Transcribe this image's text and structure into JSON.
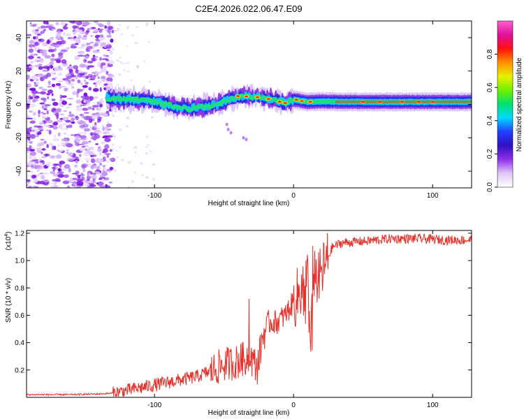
{
  "figure_title": "C2E4.2026.022.06.47.E09",
  "chart_data": [
    {
      "type": "heatmap",
      "name": "spectrogram",
      "xlabel": "Height of straight line (km)",
      "ylabel": "Frequency (Hz)",
      "xlim": [
        -192,
        128
      ],
      "ylim": [
        -50,
        50
      ],
      "x_ticks": [
        -100,
        0,
        100
      ],
      "x_tick_labels": [
        "-100",
        "0",
        "100"
      ],
      "y_ticks": [
        -40,
        -20,
        0,
        20,
        40
      ],
      "y_tick_labels": [
        "-40",
        "-20",
        "0",
        "20",
        "40"
      ],
      "colorbar": {
        "label": "Normalized spectral amplitude",
        "range": [
          0,
          1
        ],
        "ticks": [
          0.0,
          0.2,
          0.4,
          0.6,
          0.8
        ],
        "tick_labels": [
          "0.0",
          "0.2",
          "0.4",
          "0.6",
          "0.8"
        ],
        "colors": [
          "#ffffff",
          "#e0c8f8",
          "#9030e8",
          "#3010c0",
          "#2040ff",
          "#00d8ff",
          "#00e070",
          "#70f000",
          "#e8f000",
          "#ff9000",
          "#ff1010",
          "#e0109a",
          "#ff60d0"
        ]
      },
      "noise_region_x": [
        -192,
        -130
      ],
      "line_center": [
        {
          "x": -134,
          "f": 3.5
        },
        {
          "x": -120,
          "f": 2.8
        },
        {
          "x": -105,
          "f": 2.5
        },
        {
          "x": -95,
          "f": 1.0
        },
        {
          "x": -85,
          "f": -1.5
        },
        {
          "x": -75,
          "f": -2.5
        },
        {
          "x": -65,
          "f": -1.5
        },
        {
          "x": -55,
          "f": 0.0
        },
        {
          "x": -45,
          "f": 3.5
        },
        {
          "x": -35,
          "f": 5.0
        },
        {
          "x": -25,
          "f": 4.5
        },
        {
          "x": -15,
          "f": 3.0
        },
        {
          "x": -5,
          "f": 1.0
        },
        {
          "x": 0,
          "f": 2.8
        },
        {
          "x": 10,
          "f": 1.5
        },
        {
          "x": 20,
          "f": 1.8
        },
        {
          "x": 40,
          "f": 1.5
        },
        {
          "x": 60,
          "f": 1.5
        },
        {
          "x": 80,
          "f": 1.5
        },
        {
          "x": 100,
          "f": 1.5
        },
        {
          "x": 128,
          "f": 1.5
        }
      ]
    },
    {
      "type": "line",
      "name": "snr",
      "xlabel": "Height of straight line (km)",
      "ylabel": "SNR (10 * v/v)",
      "scale_label": "(x10",
      "scale_exponent": "4",
      "scale_suffix": ")",
      "xlim": [
        -192,
        128
      ],
      "ylim": [
        0,
        1.22
      ],
      "x_ticks": [
        -100,
        0,
        100
      ],
      "x_tick_labels": [
        "-100",
        "0",
        "100"
      ],
      "y_ticks": [
        0.2,
        0.4,
        0.6,
        0.8,
        1.0,
        1.2
      ],
      "y_tick_labels": [
        "0.2",
        "0.4",
        "0.6",
        "0.8",
        "1.0",
        "1.2"
      ],
      "line_color": "#e8302a",
      "series": [
        {
          "name": "SNR",
          "points": [
            [
              -192,
              0.02
            ],
            [
              -160,
              0.02
            ],
            [
              -140,
              0.025
            ],
            [
              -130,
              0.03
            ],
            [
              -120,
              0.05
            ],
            [
              -110,
              0.07
            ],
            [
              -100,
              0.09
            ],
            [
              -90,
              0.11
            ],
            [
              -80,
              0.13
            ],
            [
              -70,
              0.15
            ],
            [
              -60,
              0.19
            ],
            [
              -50,
              0.24
            ],
            [
              -40,
              0.26
            ],
            [
              -32,
              0.3
            ],
            [
              -26,
              0.22
            ],
            [
              -22,
              0.45
            ],
            [
              -18,
              0.55
            ],
            [
              -12,
              0.55
            ],
            [
              -6,
              0.6
            ],
            [
              0,
              0.7
            ],
            [
              6,
              0.78
            ],
            [
              10,
              0.85
            ],
            [
              12,
              0.4
            ],
            [
              14,
              0.95
            ],
            [
              18,
              0.85
            ],
            [
              22,
              0.95
            ],
            [
              28,
              1.1
            ],
            [
              35,
              1.13
            ],
            [
              50,
              1.14
            ],
            [
              70,
              1.16
            ],
            [
              90,
              1.16
            ],
            [
              110,
              1.15
            ],
            [
              128,
              1.15
            ]
          ]
        }
      ]
    }
  ]
}
